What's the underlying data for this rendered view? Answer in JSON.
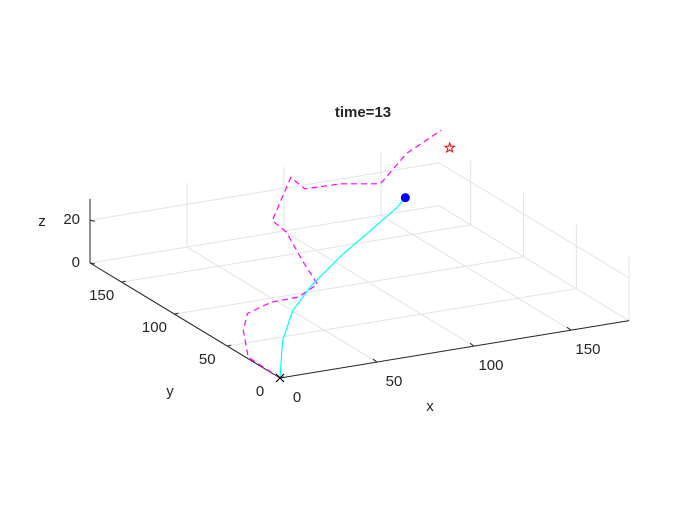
{
  "chart_data": {
    "type": "line3d",
    "title": "time=13",
    "xlabel": "x",
    "ylabel": "y",
    "zlabel": "z",
    "xlim": [
      0,
      180
    ],
    "ylim": [
      0,
      180
    ],
    "zlim": [
      0,
      30
    ],
    "xticks": [
      0,
      50,
      100,
      150
    ],
    "yticks": [
      0,
      50,
      100,
      150
    ],
    "zticks": [
      0,
      20
    ],
    "grid": true,
    "series": [
      {
        "color": "#ff00ff",
        "dash": "dashed",
        "x": [
          0,
          1,
          17,
          30,
          47,
          62,
          78,
          80,
          86,
          88,
          103,
          101,
          119,
          135,
          159,
          174
        ],
        "y": [
          0,
          32,
          66,
          86,
          95,
          96,
          108,
          125,
          152,
          169,
          179,
          162,
          161,
          153,
          172,
          167
        ],
        "z": [
          0,
          0,
          0,
          0,
          0,
          0,
          0,
          5,
          10,
          10,
          25,
          25,
          25,
          25,
          30,
          40
        ]
      },
      {
        "color": "#00ffff",
        "dash": "solid",
        "x": [
          0,
          22,
          42,
          62,
          90,
          120,
          135,
          143
        ],
        "y": [
          0,
          38,
          65,
          84,
          107,
          129,
          138,
          144
        ],
        "z": [
          0,
          3,
          6,
          9,
          12,
          15,
          18,
          20
        ]
      }
    ],
    "markers": [
      {
        "symbol": "x",
        "color": "#000000",
        "x": 0,
        "y": 0,
        "z": 0
      },
      {
        "symbol": "circle",
        "color": "#0000ff",
        "x": 143,
        "y": 144,
        "z": 20
      },
      {
        "symbol": "star",
        "color": "#ff0000",
        "x": 180,
        "y": 170,
        "z": 30
      }
    ]
  }
}
